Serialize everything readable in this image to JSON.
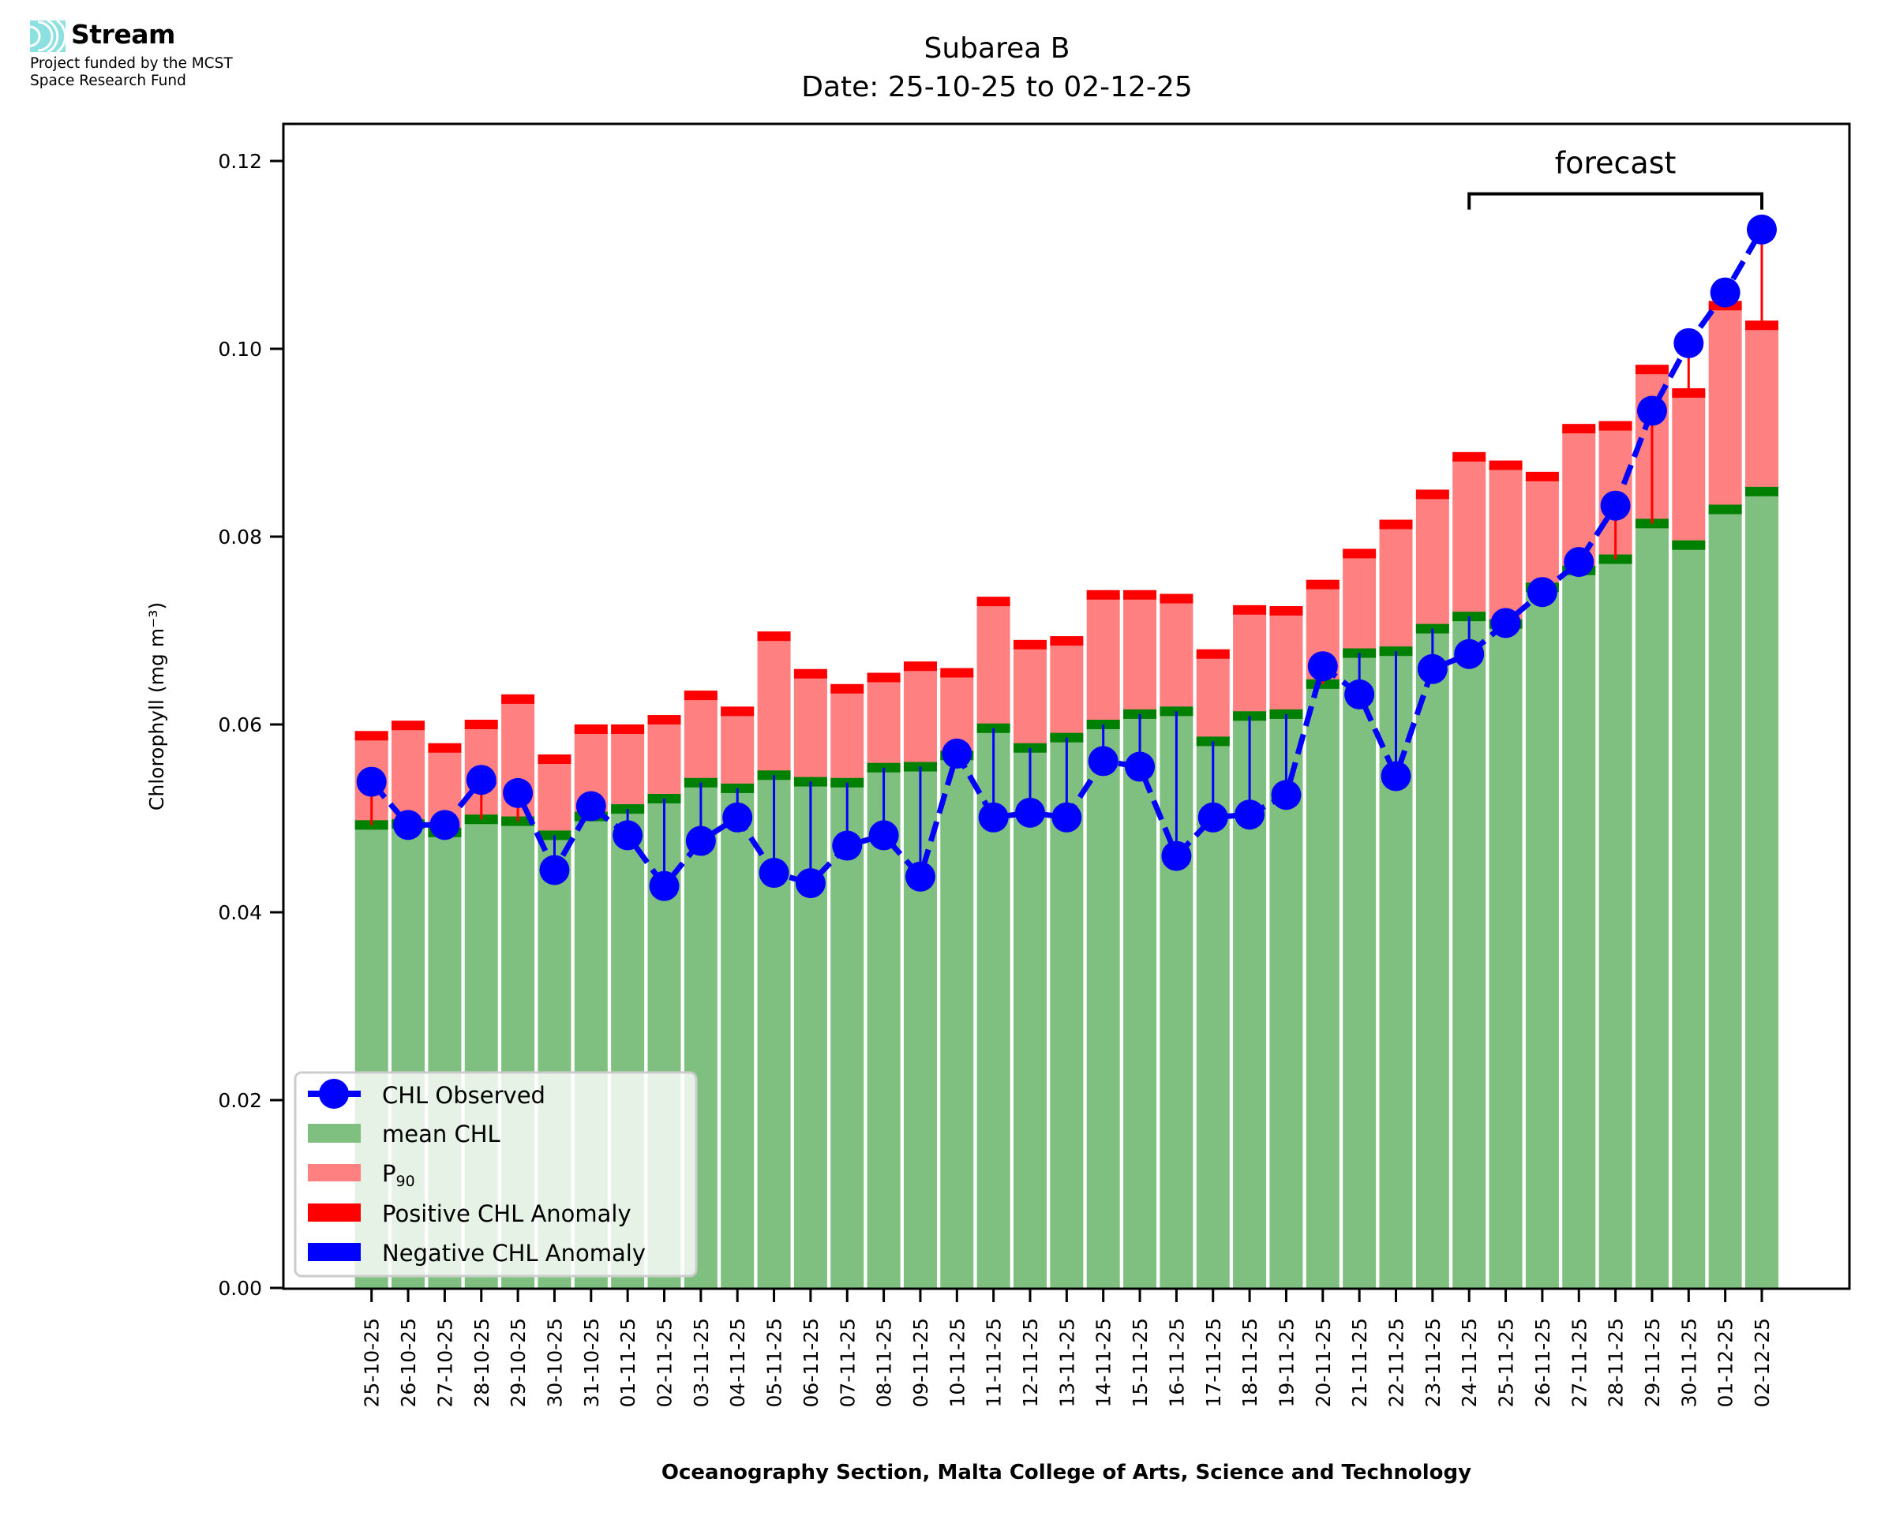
{
  "logo": {
    "name": "Stream",
    "line1": "Project funded by the MCST",
    "line2": "Space Research Fund",
    "color": "#8de0e0"
  },
  "colors": {
    "mean": "#7fbf7f",
    "mean_marker": "#008000",
    "p90": "#ff8080",
    "positive": "#ff0000",
    "negative": "#0000ff",
    "observed": "#0000ff"
  },
  "chart_data": {
    "type": "bar",
    "title": "Subarea B",
    "subtitle": "Date: 25-10-25 to 02-12-25",
    "xlabel": "Oceanography Section, Malta College of Arts, Science and Technology",
    "ylabel": "Chlorophyll (mg m⁻³)",
    "ylim": [
      0,
      0.124
    ],
    "yticks": [
      "0.00",
      "0.02",
      "0.04",
      "0.06",
      "0.08",
      "0.10",
      "0.12"
    ],
    "ytick_values": [
      0,
      0.02,
      0.04,
      0.06,
      0.08,
      0.1,
      0.12
    ],
    "grid": false,
    "legend_position": "lower-left",
    "legend": [
      {
        "key": "observed",
        "label": "CHL Observed"
      },
      {
        "key": "mean",
        "label": "mean CHL"
      },
      {
        "key": "p90",
        "label": "P",
        "sub": "90"
      },
      {
        "key": "positive",
        "label": "Positive CHL Anomaly"
      },
      {
        "key": "negative",
        "label": "Negative CHL Anomaly"
      }
    ],
    "annotation": {
      "text": "forecast",
      "from": "24-11-25",
      "to": "02-12-25",
      "level": 0.1165
    },
    "categories": [
      "25-10-25",
      "26-10-25",
      "27-10-25",
      "28-10-25",
      "29-10-25",
      "30-10-25",
      "31-10-25",
      "01-11-25",
      "02-11-25",
      "03-11-25",
      "04-11-25",
      "05-11-25",
      "06-11-25",
      "07-11-25",
      "08-11-25",
      "09-11-25",
      "10-11-25",
      "11-11-25",
      "12-11-25",
      "13-11-25",
      "14-11-25",
      "15-11-25",
      "16-11-25",
      "17-11-25",
      "18-11-25",
      "19-11-25",
      "20-11-25",
      "21-11-25",
      "22-11-25",
      "23-11-25",
      "24-11-25",
      "25-11-25",
      "26-11-25",
      "27-11-25",
      "28-11-25",
      "29-11-25",
      "30-11-25",
      "01-12-25",
      "02-12-25"
    ],
    "series": [
      {
        "name": "mean CHL",
        "values": [
          0.0493,
          0.0494,
          0.0485,
          0.0499,
          0.0497,
          0.0482,
          0.0502,
          0.051,
          0.0521,
          0.0538,
          0.0532,
          0.0546,
          0.0539,
          0.0538,
          0.0554,
          0.0555,
          0.0567,
          0.0596,
          0.0575,
          0.0586,
          0.06,
          0.0611,
          0.0614,
          0.0582,
          0.0609,
          0.0611,
          0.0643,
          0.0676,
          0.0678,
          0.0702,
          0.0715,
          0.0707,
          0.0746,
          0.0764,
          0.0776,
          0.0814,
          0.0791,
          0.0829,
          0.0848
        ]
      },
      {
        "name": "P90",
        "values": [
          0.0588,
          0.0599,
          0.0575,
          0.06,
          0.0627,
          0.0563,
          0.0595,
          0.0595,
          0.0605,
          0.0631,
          0.0614,
          0.0694,
          0.0654,
          0.0638,
          0.065,
          0.0662,
          0.0655,
          0.0731,
          0.0685,
          0.0689,
          0.0738,
          0.0738,
          0.0734,
          0.0675,
          0.0722,
          0.0721,
          0.0749,
          0.0782,
          0.0813,
          0.0845,
          0.0885,
          0.0876,
          0.0864,
          0.0915,
          0.0918,
          0.0978,
          0.0953,
          0.1046,
          0.1025
        ]
      },
      {
        "name": "CHL Observed",
        "values": [
          0.0539,
          0.0493,
          0.0493,
          0.0541,
          0.0527,
          0.0445,
          0.0513,
          0.0482,
          0.0428,
          0.0476,
          0.0501,
          0.0442,
          0.0431,
          0.0471,
          0.0482,
          0.0438,
          0.0569,
          0.0501,
          0.0506,
          0.0501,
          0.0561,
          0.0555,
          0.046,
          0.0501,
          0.0504,
          0.0525,
          0.0662,
          0.0632,
          0.0545,
          0.0659,
          0.0675,
          0.0708,
          0.0741,
          0.0773,
          0.0833,
          0.0934,
          0.1006,
          0.106,
          0.1127
        ]
      }
    ]
  }
}
